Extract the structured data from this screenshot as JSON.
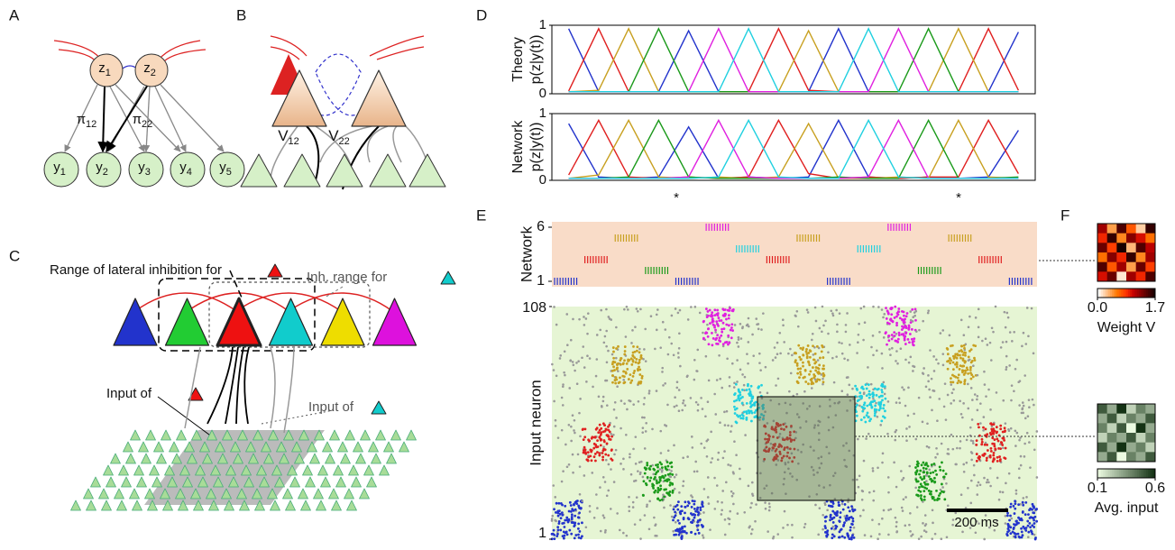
{
  "panels": {
    "a": {
      "label": "A",
      "latent": [
        {
          "base": "z",
          "sub": "1"
        },
        {
          "base": "z",
          "sub": "2"
        }
      ],
      "observed": [
        {
          "base": "y",
          "sub": "1"
        },
        {
          "base": "y",
          "sub": "2"
        },
        {
          "base": "y",
          "sub": "3"
        },
        {
          "base": "y",
          "sub": "4"
        },
        {
          "base": "y",
          "sub": "5"
        }
      ],
      "weights": [
        {
          "base": "π",
          "sub": "12"
        },
        {
          "base": "π",
          "sub": "22"
        }
      ]
    },
    "b": {
      "label": "B",
      "weights": [
        {
          "base": "V",
          "sub": "12"
        },
        {
          "base": "V",
          "sub": "22"
        }
      ]
    },
    "c": {
      "label": "C",
      "inhibition_label": "Range of lateral inhibition for",
      "inh_range_label": "Inh. range for",
      "input_label_red": "Input of",
      "input_label_cyan": "Input of"
    },
    "d": {
      "label": "D",
      "ylim": [
        0,
        1
      ],
      "yticks": [
        0,
        1
      ],
      "markers": [
        "*",
        "*"
      ],
      "theory": {
        "ylabel": [
          "Theory",
          "p(z|y(t))"
        ],
        "series": [
          {
            "color": "#2233cc",
            "values": [
              0.95,
              0.03,
              0.03,
              0.03,
              0.92,
              0.03,
              0.03,
              0.03,
              0.03,
              0.95,
              0.03,
              0.03,
              0.03,
              0.03,
              0.03,
              0.9
            ]
          },
          {
            "color": "#e02020",
            "values": [
              0.04,
              0.95,
              0.03,
              0.03,
              0.03,
              0.03,
              0.03,
              0.95,
              0.05,
              0.03,
              0.03,
              0.03,
              0.03,
              0.03,
              0.95,
              0.05
            ]
          },
          {
            "color": "#c8a020",
            "values": [
              0.03,
              0.05,
              0.95,
              0.03,
              0.03,
              0.03,
              0.03,
              0.03,
              0.92,
              0.03,
              0.03,
              0.03,
              0.03,
              0.95,
              0.03,
              0.03
            ]
          },
          {
            "color": "#1a9a1a",
            "values": [
              0.03,
              0.03,
              0.03,
              0.95,
              0.03,
              0.03,
              0.03,
              0.03,
              0.03,
              0.03,
              0.03,
              0.03,
              0.95,
              0.03,
              0.03,
              0.03
            ]
          },
          {
            "color": "#e020e0",
            "values": [
              0.03,
              0.03,
              0.03,
              0.03,
              0.03,
              0.95,
              0.03,
              0.03,
              0.03,
              0.03,
              0.03,
              0.95,
              0.03,
              0.03,
              0.03,
              0.03
            ]
          },
          {
            "color": "#20d0e0",
            "values": [
              0.03,
              0.03,
              0.03,
              0.03,
              0.03,
              0.03,
              0.95,
              0.03,
              0.03,
              0.03,
              0.95,
              0.03,
              0.03,
              0.03,
              0.03,
              0.03
            ]
          }
        ]
      },
      "network": {
        "ylabel": [
          "Network",
          "p(z|y(t))"
        ],
        "series": [
          {
            "color": "#2233cc",
            "values": [
              0.85,
              0.05,
              0.03,
              0.05,
              0.8,
              0.03,
              0.05,
              0.03,
              0.05,
              0.9,
              0.05,
              0.03,
              0.05,
              0.03,
              0.05,
              0.75
            ]
          },
          {
            "color": "#e02020",
            "values": [
              0.08,
              0.9,
              0.05,
              0.03,
              0.05,
              0.03,
              0.05,
              0.9,
              0.1,
              0.03,
              0.05,
              0.03,
              0.05,
              0.05,
              0.9,
              0.1
            ]
          },
          {
            "color": "#c8a020",
            "values": [
              0.03,
              0.08,
              0.9,
              0.05,
              0.03,
              0.05,
              0.03,
              0.05,
              0.85,
              0.03,
              0.03,
              0.05,
              0.03,
              0.9,
              0.05,
              0.03
            ]
          },
          {
            "color": "#1a9a1a",
            "values": [
              0.03,
              0.03,
              0.05,
              0.9,
              0.05,
              0.03,
              0.03,
              0.03,
              0.03,
              0.05,
              0.03,
              0.03,
              0.9,
              0.03,
              0.03,
              0.05
            ]
          },
          {
            "color": "#e020e0",
            "values": [
              0.03,
              0.03,
              0.03,
              0.03,
              0.05,
              0.9,
              0.05,
              0.03,
              0.03,
              0.03,
              0.05,
              0.9,
              0.03,
              0.03,
              0.03,
              0.03
            ]
          },
          {
            "color": "#20d0e0",
            "values": [
              0.03,
              0.03,
              0.03,
              0.03,
              0.03,
              0.05,
              0.9,
              0.05,
              0.03,
              0.03,
              0.9,
              0.05,
              0.03,
              0.03,
              0.03,
              0.03
            ]
          }
        ]
      }
    },
    "e": {
      "label": "E",
      "network": {
        "ylabel": "Network",
        "yticks": [
          1,
          6
        ]
      },
      "input": {
        "ylabel": "Input neuron",
        "yticks": [
          1,
          108
        ]
      },
      "scalebar": "200 ms"
    },
    "f": {
      "label": "F",
      "weight": {
        "title": "Weight V",
        "ticks": [
          {
            "value": 0,
            "label": "0.0"
          },
          1.7
        ],
        "values": [
          [
            1.2,
            0.4,
            1.5,
            0.7,
            0.2,
            1.6
          ],
          [
            0.9,
            1.6,
            0.5,
            1.3,
            1.0,
            0.6
          ],
          [
            1.4,
            0.8,
            1.7,
            0.3,
            1.5,
            1.1
          ],
          [
            0.6,
            1.3,
            0.9,
            1.6,
            0.5,
            1.2
          ],
          [
            1.5,
            0.7,
            1.2,
            0.4,
            1.4,
            0.8
          ],
          [
            1.0,
            1.4,
            0.1,
            1.2,
            0.9,
            1.5
          ]
        ]
      },
      "input": {
        "title": "Avg. input",
        "ticks": [
          0.1,
          0.6
        ],
        "values": [
          [
            0.5,
            0.3,
            0.6,
            0.2,
            0.4,
            0.3
          ],
          [
            0.3,
            0.5,
            0.2,
            0.4,
            0.3,
            0.5
          ],
          [
            0.4,
            0.2,
            0.5,
            0.1,
            0.6,
            0.3
          ],
          [
            0.2,
            0.4,
            0.3,
            0.5,
            0.2,
            0.4
          ],
          [
            0.5,
            0.3,
            0.6,
            0.3,
            0.4,
            0.2
          ],
          [
            0.3,
            0.5,
            0.1,
            0.4,
            0.3,
            0.5
          ]
        ]
      }
    }
  }
}
